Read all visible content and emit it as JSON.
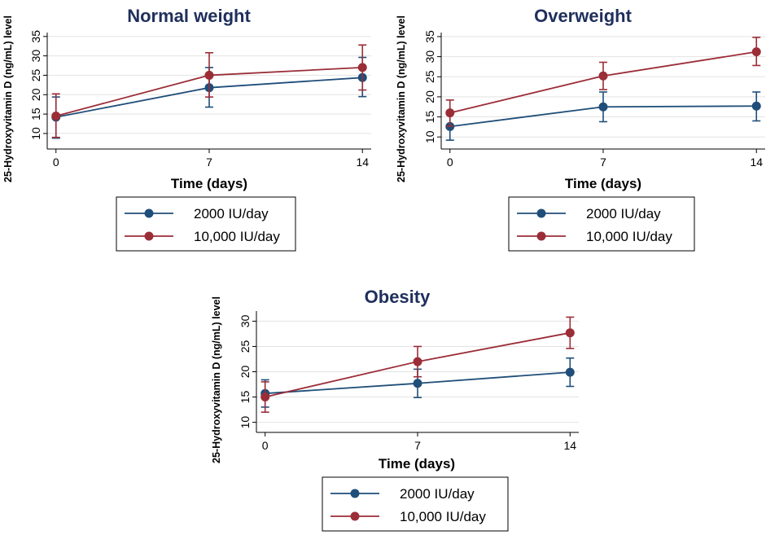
{
  "colors": {
    "series_2000": "#1f4e79",
    "series_10000": "#9b2d37",
    "title": "#1f2f5c"
  },
  "chart_data": [
    {
      "type": "line",
      "title": "Normal weight",
      "xlabel": "Time (days)",
      "ylabel": "25-Hydroxyvitamin D  (ng/mL) level",
      "x": [
        0,
        7,
        14
      ],
      "x_tick_labels": [
        "0",
        "7",
        "14"
      ],
      "xlim": [
        -0.4,
        14.4
      ],
      "ylim": [
        6,
        36
      ],
      "y_ticks": [
        10,
        15,
        20,
        25,
        30,
        35
      ],
      "y_tick_labels": [
        "10",
        "15",
        "20",
        "25",
        "30",
        "35"
      ],
      "legend_position": "below",
      "series": [
        {
          "name": "2000 IU/day",
          "values": [
            14.2,
            21.8,
            24.4
          ],
          "err_low": [
            8.8,
            16.8,
            19.5
          ],
          "err_high": [
            19.4,
            27.0,
            29.6
          ]
        },
        {
          "name": "10,000 IU/day",
          "values": [
            14.5,
            25.0,
            27.0
          ],
          "err_low": [
            9.0,
            19.4,
            21.2
          ],
          "err_high": [
            20.2,
            30.8,
            32.8
          ]
        }
      ]
    },
    {
      "type": "line",
      "title": "Overweight",
      "xlabel": "Time (days)",
      "ylabel": "25-Hydroxyvitamin D  (ng/mL) level",
      "x": [
        0,
        7,
        14
      ],
      "x_tick_labels": [
        "0",
        "7",
        "14"
      ],
      "xlim": [
        -0.4,
        14.4
      ],
      "ylim": [
        7,
        36
      ],
      "y_ticks": [
        10,
        15,
        20,
        25,
        30,
        35
      ],
      "y_tick_labels": [
        "10",
        "15",
        "20",
        "25",
        "30",
        "35"
      ],
      "legend_position": "below",
      "series": [
        {
          "name": "2000 IU/day",
          "values": [
            12.6,
            17.5,
            17.7
          ],
          "err_low": [
            9.2,
            13.8,
            14.0
          ],
          "err_high": [
            16.0,
            21.2,
            21.2
          ]
        },
        {
          "name": "10,000 IU/day",
          "values": [
            16.0,
            25.2,
            31.2
          ],
          "err_low": [
            12.7,
            21.8,
            27.8
          ],
          "err_high": [
            19.2,
            28.6,
            34.8
          ]
        }
      ]
    },
    {
      "type": "line",
      "title": "Obesity",
      "xlabel": "Time (days)",
      "ylabel": "25-Hydroxyvitamin D  (ng/mL) level",
      "x": [
        0,
        7,
        14
      ],
      "x_tick_labels": [
        "0",
        "7",
        "14"
      ],
      "xlim": [
        -0.4,
        14.4
      ],
      "ylim": [
        8,
        32
      ],
      "y_ticks": [
        10,
        15,
        20,
        25,
        30
      ],
      "y_tick_labels": [
        "10",
        "15",
        "20",
        "25",
        "30"
      ],
      "legend_position": "below",
      "series": [
        {
          "name": "2000 IU/day",
          "values": [
            15.7,
            17.7,
            19.9
          ],
          "err_low": [
            13.0,
            14.9,
            17.1
          ],
          "err_high": [
            18.4,
            20.5,
            22.7
          ]
        },
        {
          "name": "10,000 IU/day",
          "values": [
            15.0,
            22.0,
            27.7
          ],
          "err_low": [
            12.0,
            19.0,
            24.6
          ],
          "err_high": [
            18.0,
            25.0,
            30.8
          ]
        }
      ]
    }
  ]
}
